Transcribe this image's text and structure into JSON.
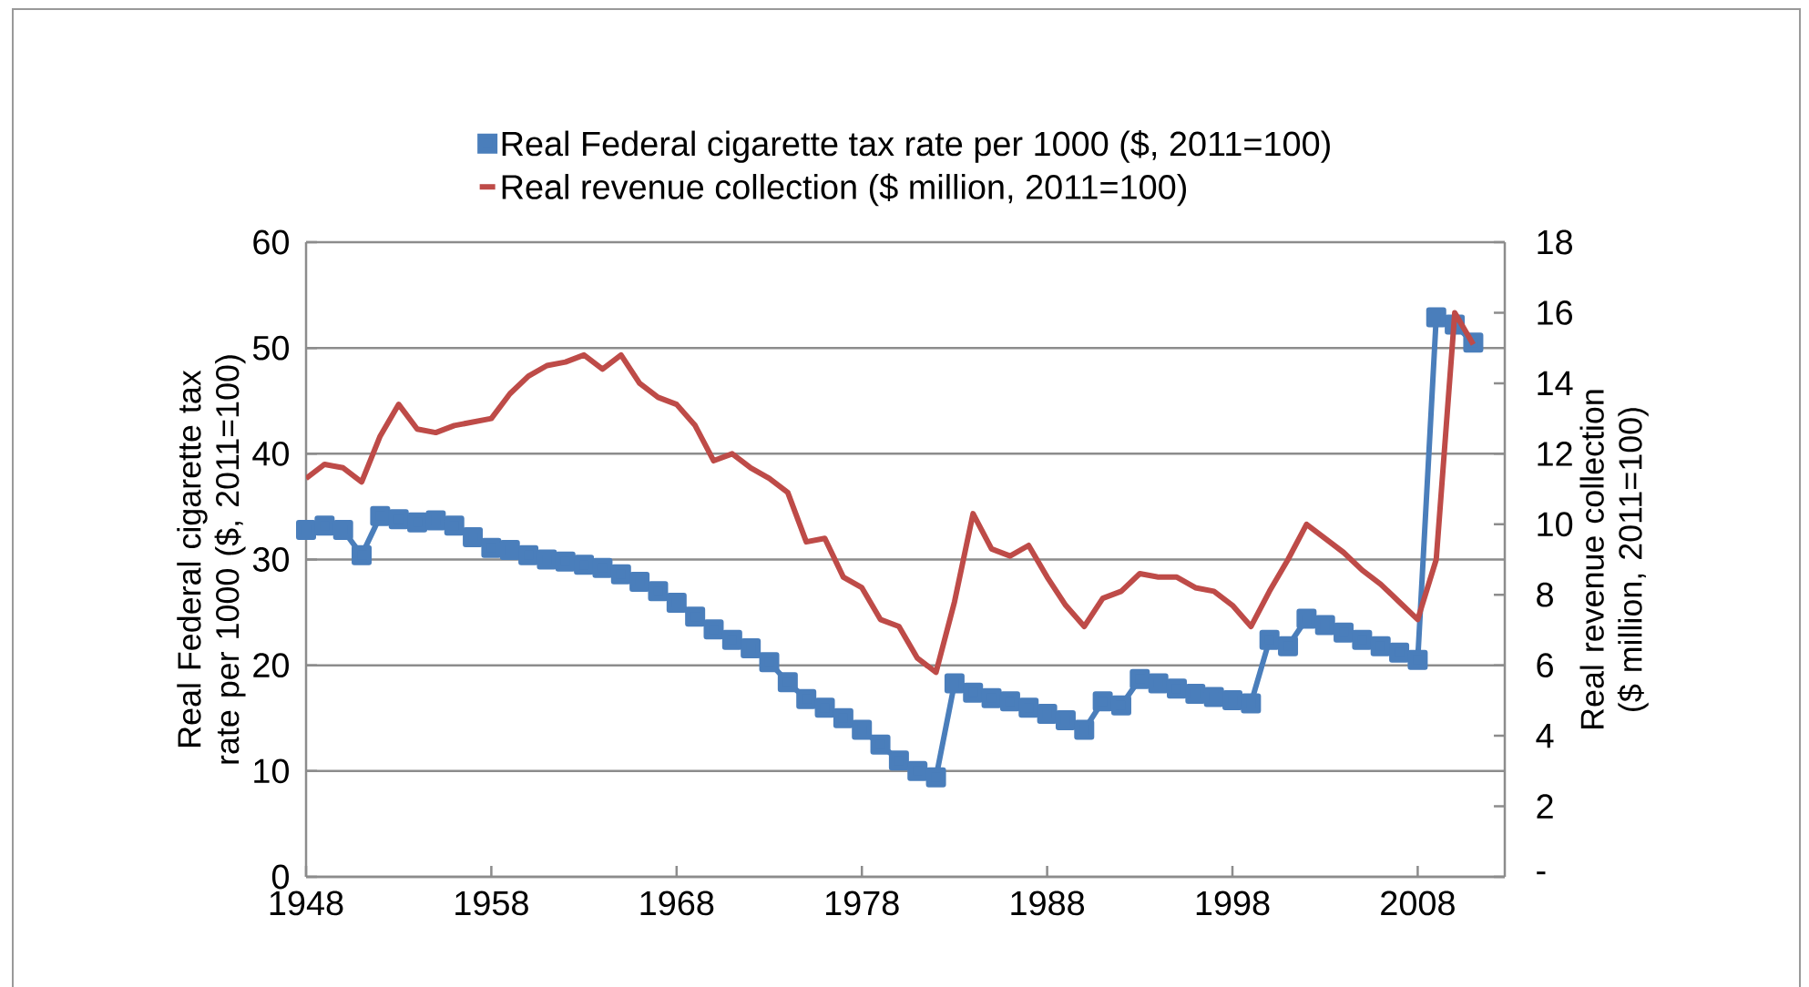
{
  "chart_data": {
    "type": "line",
    "ylabel": "Real Federal cigarette tax rate per 1000 ($, 2011=100)",
    "y2label": "Real revenue collection ($ million, 2011=100)",
    "x": [
      1948,
      1949,
      1950,
      1951,
      1952,
      1953,
      1954,
      1955,
      1956,
      1957,
      1958,
      1959,
      1960,
      1961,
      1962,
      1963,
      1964,
      1965,
      1966,
      1967,
      1968,
      1969,
      1970,
      1971,
      1972,
      1973,
      1974,
      1975,
      1976,
      1977,
      1978,
      1979,
      1980,
      1981,
      1982,
      1983,
      1984,
      1985,
      1986,
      1987,
      1988,
      1989,
      1990,
      1991,
      1992,
      1993,
      1994,
      1995,
      1996,
      1997,
      1998,
      1999,
      2000,
      2001,
      2002,
      2003,
      2004,
      2005,
      2006,
      2007,
      2008,
      2009,
      2010,
      2011
    ],
    "xlim": [
      1948,
      2012.7
    ],
    "xticks": [
      1948,
      1958,
      1968,
      1978,
      1988,
      1998,
      2008
    ],
    "ylim": [
      0,
      60
    ],
    "yticks": [
      0,
      10,
      20,
      30,
      40,
      50,
      60
    ],
    "y2lim": [
      0,
      18
    ],
    "y2ticks": [
      {
        "value": 0,
        "label": "-"
      },
      2,
      4,
      6,
      8,
      10,
      12,
      14,
      16,
      18
    ],
    "grid": "y",
    "legend": "top",
    "series": [
      {
        "name": "Real Federal cigarette tax rate per 1000 ($, 2011=100)",
        "color": "#4a7ebb",
        "marker": "square",
        "values": [
          32.8,
          33.2,
          32.8,
          30.4,
          34.1,
          33.8,
          33.5,
          33.7,
          33.2,
          32.1,
          31.1,
          30.9,
          30.4,
          30.0,
          29.8,
          29.5,
          29.2,
          28.6,
          27.9,
          27.0,
          25.9,
          24.6,
          23.4,
          22.4,
          21.6,
          20.3,
          18.4,
          16.8,
          16.0,
          15.0,
          13.9,
          12.5,
          11.0,
          10.0,
          9.4,
          18.3,
          17.4,
          16.9,
          16.6,
          16.0,
          15.4,
          14.8,
          13.9,
          16.6,
          16.2,
          18.7,
          18.3,
          17.8,
          17.3,
          17.0,
          16.7,
          16.4,
          22.4,
          21.8,
          24.4,
          23.8,
          23.1,
          22.4,
          21.8,
          21.2,
          20.5,
          52.9,
          52.2,
          50.5
        ]
      },
      {
        "name": "Real revenue collection ($ million, 2011=100)",
        "color": "#be4b48",
        "marker": "none",
        "axis": "y2",
        "values": [
          11.3,
          11.7,
          11.6,
          11.2,
          12.5,
          13.4,
          12.7,
          12.6,
          12.8,
          12.9,
          13.0,
          13.7,
          14.2,
          14.5,
          14.6,
          14.8,
          14.4,
          14.8,
          14.0,
          13.6,
          13.4,
          12.8,
          11.8,
          12.0,
          11.6,
          11.3,
          10.9,
          9.5,
          9.6,
          8.5,
          8.2,
          7.3,
          7.1,
          6.2,
          5.8,
          7.8,
          10.3,
          9.3,
          9.1,
          9.4,
          8.5,
          7.7,
          7.1,
          7.9,
          8.1,
          8.6,
          8.5,
          8.5,
          8.2,
          8.1,
          7.7,
          7.1,
          8.1,
          9.0,
          10.0,
          9.6,
          9.2,
          8.7,
          8.3,
          7.8,
          7.3,
          9.0,
          16.0,
          15.1
        ]
      }
    ]
  }
}
